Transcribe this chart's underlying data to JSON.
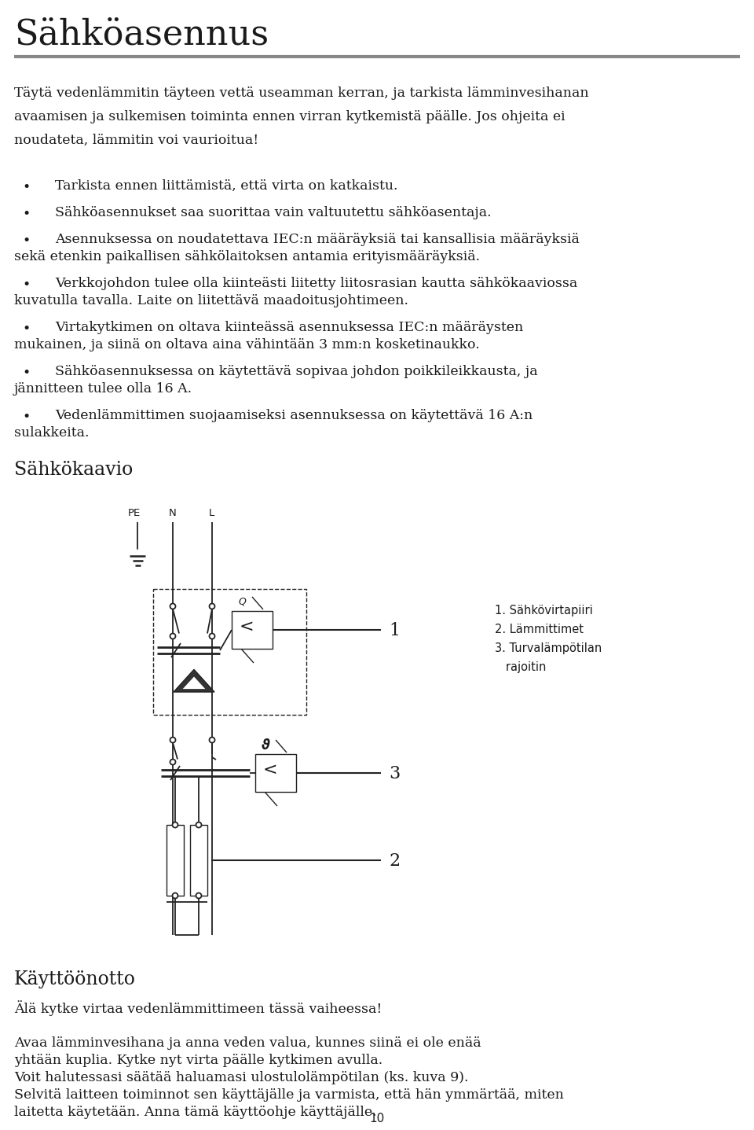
{
  "title": "Sähköasennus",
  "title_fontsize": 32,
  "title_color": "#1a1a1a",
  "separator_color": "#888888",
  "body_color": "#1a1a1a",
  "body_fontsize": 12.5,
  "section2_heading": "Sähkökaavio",
  "section3_heading": "Käyttöönotto",
  "intro_lines": [
    "Täytä vedenlämmitin täyteen vettä useamman kerran, ja tarkista lämminvesihanan",
    "avaamisen ja sulkemisen toiminta ennen virran kytkemistä päälle. Jos ohjeita ei",
    "noudateta, lämmitin voi vaurioitua!"
  ],
  "bullet_points": [
    [
      "Tarkista ennen liittämistä, että virta on katkaistu."
    ],
    [
      "Sähköasennukset saa suorittaa vain valtuutettu sähköasentaja."
    ],
    [
      "Asennuksessa on noudatettava IEC:n määräyksiä tai kansallisia määräyksiä",
      "sekä etenkin paikallisen sähkölaitoksen antamia erityismääräyksiä."
    ],
    [
      "Verkkojohdon tulee olla kiinteästi liitetty liitosrasian kautta sähkökaaviossa",
      "kuvatulla tavalla. Laite on liitettävä maadoitusjohtimeen."
    ],
    [
      "Virtakytkimen on oltava kiinteässä asennuksessa IEC:n määräysten",
      "mukainen, ja siinä on oltava aina vähintään 3 mm:n kosketinaukko."
    ],
    [
      "Sähköasennuksessa on käytettävä sopivaa johdon poikkileikkausta, ja",
      "jännitteen tulee olla 16 A."
    ],
    [
      "Vedenlämmittimen suojaamiseksi asennuksessa on käytettävä 16 A:n",
      "sulakkeita."
    ]
  ],
  "legend_lines": [
    "1. Sähkövirtapiiri",
    "2. Lämmittimet",
    "3. Turvalämpötilan",
    "   rajoitin"
  ],
  "kayttoonotto_warning": "Älä kytke virtaa vedenlämmittimeen tässä vaiheessa!",
  "kayttoonotto_lines": [
    "Avaa lämminvesihana ja anna veden valua, kunnes siinä ei ole enää",
    "yhtään kuplia. Kytke nyt virta päälle kytkimen avulla.",
    "Voit halutessasi säätää haluamasi ulostulolämpötilan (ks. kuva 9).",
    "Selvitä laitteen toiminnot sen käyttäjälle ja varmista, että hän ymmärtää, miten",
    "laitetta käytetään. Anna tämä käyttöohje käyttäjälle."
  ],
  "page_number": "10",
  "background_color": "#ffffff"
}
